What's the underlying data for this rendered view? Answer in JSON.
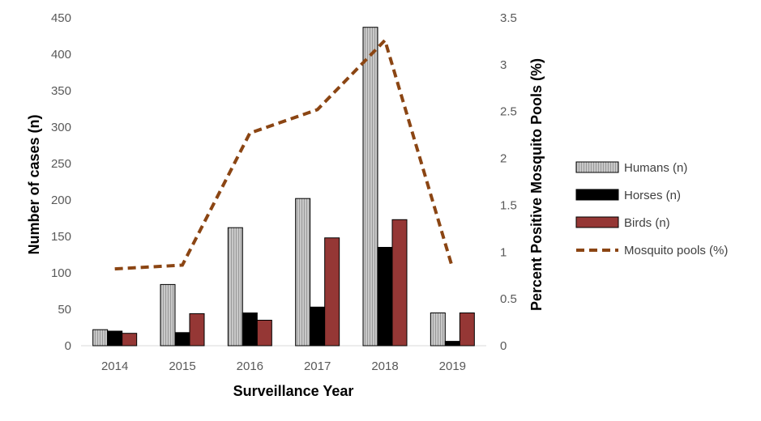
{
  "chart_data": {
    "type": "bar",
    "title": "",
    "categories": [
      "2014",
      "2015",
      "2016",
      "2017",
      "2018",
      "2019"
    ],
    "xlabel": "Surveillance Year",
    "ylabel": "Number of cases (n)",
    "y2label": "Percent Positive Mosquito Pools (%)",
    "ylim": [
      0,
      450
    ],
    "y2lim": [
      0,
      3.5
    ],
    "yticks": [
      "0",
      "50",
      "100",
      "150",
      "200",
      "250",
      "300",
      "350",
      "400",
      "450"
    ],
    "y2ticks": [
      "0",
      "0.5",
      "1",
      "1.5",
      "2",
      "2.5",
      "3",
      "3.5"
    ],
    "series": [
      {
        "name": "Humans (n)",
        "type": "bar",
        "axis": "left",
        "color": "#bfbfbf",
        "values": [
          22,
          84,
          162,
          202,
          437,
          45
        ]
      },
      {
        "name": "Horses (n)",
        "type": "bar",
        "axis": "left",
        "color": "#000000",
        "values": [
          20,
          18,
          45,
          53,
          135,
          6
        ]
      },
      {
        "name": "Birds (n)",
        "type": "bar",
        "axis": "left",
        "color": "#953735",
        "values": [
          17,
          44,
          35,
          148,
          173,
          45
        ]
      },
      {
        "name": "Mosquito pools (%)",
        "type": "line",
        "axis": "right",
        "color": "#8b4513",
        "values": [
          0.82,
          0.86,
          2.27,
          2.52,
          3.26,
          0.83
        ]
      }
    ],
    "legend_position": "right"
  }
}
